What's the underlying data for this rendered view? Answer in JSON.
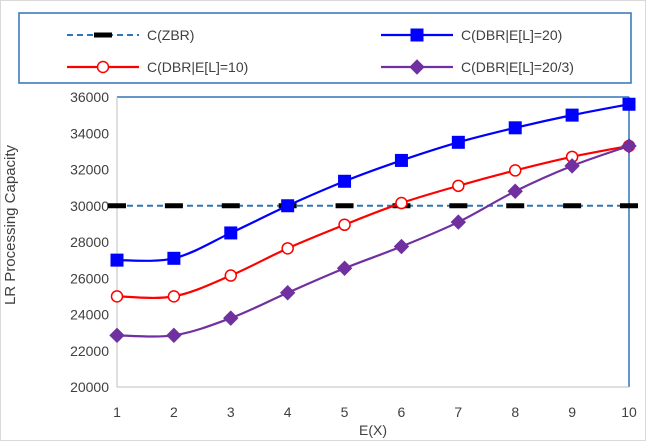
{
  "chart_data": {
    "type": "line",
    "title": "",
    "xlabel": "E(X)",
    "ylabel": "LR Processing Capacity",
    "x": [
      1,
      2,
      3,
      4,
      5,
      6,
      7,
      8,
      9,
      10
    ],
    "xlim": [
      1,
      10
    ],
    "ylim": [
      20000,
      36000
    ],
    "yticks": [
      20000,
      22000,
      24000,
      26000,
      28000,
      30000,
      32000,
      34000,
      36000
    ],
    "grid": false,
    "legend_position": "top",
    "series": [
      {
        "name": "C(ZBR)",
        "color": "#2e75b6",
        "style": "dashed",
        "marker": "dash-black",
        "values": [
          30000,
          30000,
          30000,
          30000,
          30000,
          30000,
          30000,
          30000,
          30000,
          30000
        ]
      },
      {
        "name": "C(DBR|E[L]=20)",
        "color": "#0000ff",
        "style": "solid",
        "marker": "square",
        "values": [
          27000,
          27100,
          28500,
          30000,
          31350,
          32500,
          33500,
          34300,
          35000,
          35600
        ]
      },
      {
        "name": "C(DBR|E[L]=10)",
        "color": "#ff0000",
        "style": "solid",
        "marker": "circle-open",
        "values": [
          25000,
          25000,
          26150,
          27650,
          28950,
          30150,
          31100,
          31950,
          32700,
          33300
        ]
      },
      {
        "name": "C(DBR|E[L]=20/3)",
        "color": "#7030a0",
        "style": "solid",
        "marker": "diamond",
        "values": [
          22850,
          22850,
          23800,
          25200,
          26550,
          27750,
          29100,
          30800,
          32200,
          33300
        ]
      }
    ]
  }
}
